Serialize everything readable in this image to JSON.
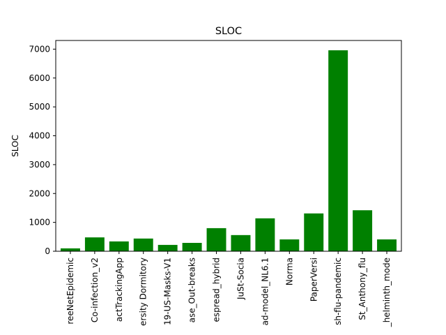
{
  "chart_data": {
    "type": "bar",
    "title": "SLOC",
    "xlabel": "",
    "ylabel": "SLOC",
    "ylim": [
      0,
      7300
    ],
    "yticks": [
      0,
      1000,
      2000,
      3000,
      4000,
      5000,
      6000,
      7000
    ],
    "bar_color": "#008000",
    "grid": false,
    "categories": [
      "reeNetEpidemic",
      "Co-infection_v2",
      "actTrackingApp",
      "ersity Dormitory",
      "19-US-Masks-V1",
      "ase_Out-breaks",
      "espread_hybrid",
      "JuSt-Socia",
      "ad-model_NL6.1",
      "Norma",
      "PaperVersi",
      "sh-flu-pandemic",
      "St_Anthony_flu",
      "_helminth_mode"
    ],
    "values": [
      100,
      480,
      340,
      440,
      220,
      290,
      800,
      560,
      1140,
      410,
      1310,
      6960,
      1420,
      410
    ]
  }
}
